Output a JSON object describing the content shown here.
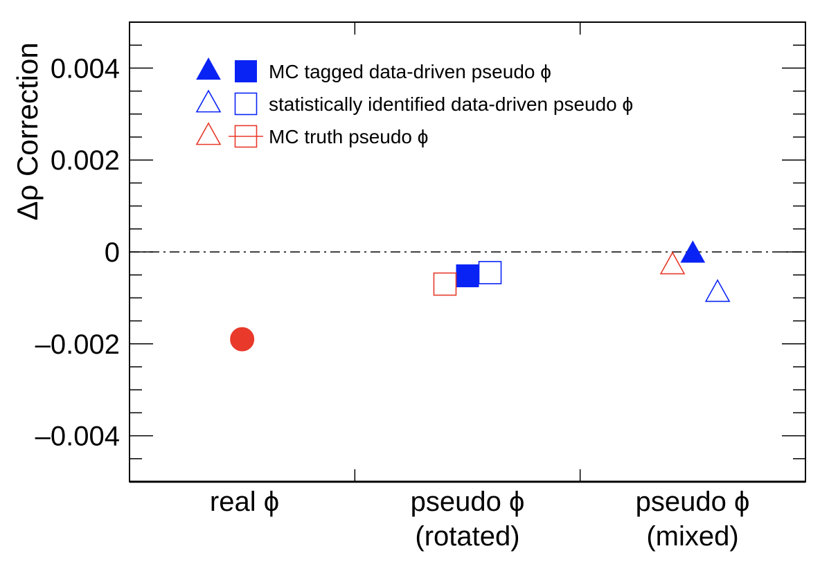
{
  "chart_data": {
    "type": "scatter",
    "title": "",
    "xlabel": "",
    "ylabel": "Δρ Correction",
    "ylim": [
      -0.005,
      0.005
    ],
    "yticks": [
      {
        "value": 0.004,
        "label": "0.004"
      },
      {
        "value": 0.002,
        "label": "0.002"
      },
      {
        "value": 0,
        "label": "0"
      },
      {
        "value": -0.002,
        "label": "–0.002"
      },
      {
        "value": -0.004,
        "label": "–0.004"
      }
    ],
    "categories": [
      {
        "name": "real",
        "lines": [
          "real ϕ"
        ]
      },
      {
        "name": "rotated",
        "lines": [
          "pseudo ϕ",
          "(rotated)"
        ]
      },
      {
        "name": "mixed",
        "lines": [
          "pseudo ϕ",
          "(mixed)"
        ]
      }
    ],
    "reference_line": {
      "y": 0,
      "style": "dash-dot"
    },
    "series": [
      {
        "name": "real ϕ",
        "legend": false,
        "marker": "circle-filled",
        "color": "#e8392a",
        "points": [
          {
            "category": 0,
            "offset": 0.0,
            "y": -0.0019
          }
        ]
      },
      {
        "name": "MC tagged data-driven pseudo ϕ",
        "marker": "filled",
        "color": "#0a23f5",
        "points": [
          {
            "category": 1,
            "offset": 0.0,
            "y": -0.00052
          },
          {
            "category": 2,
            "offset": 0.0,
            "y": -5e-05
          }
        ]
      },
      {
        "name": "statistically identified data-driven pseudo ϕ",
        "marker": "open",
        "color": "#0a23f5",
        "points": [
          {
            "category": 1,
            "offset": 0.1,
            "y": -0.00045
          },
          {
            "category": 2,
            "offset": 0.11,
            "y": -0.0009
          }
        ]
      },
      {
        "name": "MC truth pseudo ϕ",
        "marker": "open",
        "color": "#e8392a",
        "points": [
          {
            "category": 1,
            "offset": -0.1,
            "y": -0.0007
          },
          {
            "category": 2,
            "offset": -0.09,
            "y": -0.0003
          }
        ]
      }
    ],
    "legend": {
      "position": "top-left",
      "entries": [
        {
          "label": "MC tagged data-driven pseudo ϕ",
          "style": "filled",
          "color": "#0a23f5"
        },
        {
          "label": "statistically identified data-driven pseudo ϕ",
          "style": "open",
          "color": "#0a23f5"
        },
        {
          "label": "MC truth pseudo ϕ",
          "style": "open-with-line",
          "color": "#e8392a"
        }
      ]
    },
    "grid": false
  }
}
